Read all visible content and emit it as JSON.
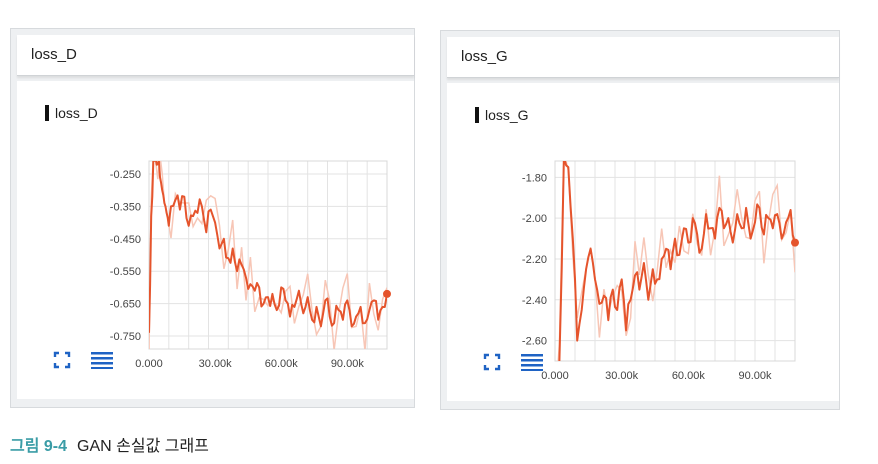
{
  "caption": {
    "figure_label": "그림 9-4",
    "text": "GAN 손실값 그래프"
  },
  "cards": [
    {
      "title": "loss_D",
      "plot_title": "loss_D"
    },
    {
      "title": "loss_G",
      "plot_title": "loss_G"
    }
  ],
  "icons": [
    "fit-to-screen-icon",
    "data-table-icon"
  ],
  "colors": {
    "line": "#e5542c",
    "line_raw": "#f7c6b6",
    "grid": "#e3e3e3"
  },
  "chart_data": [
    {
      "type": "line",
      "title": "loss_D",
      "x_tick_labels": [
        "0.000",
        "30.00k",
        "60.00k",
        "90.00k"
      ],
      "y_tick_labels": [
        "-0.250",
        "-0.350",
        "-0.450",
        "-0.550",
        "-0.650",
        "-0.750"
      ],
      "xlim": [
        0,
        108000
      ],
      "ylim": [
        -0.79,
        -0.21
      ],
      "grid": true,
      "series": [
        {
          "kind": "smoothed",
          "x": [
            0,
            1000,
            2000,
            3000,
            4000,
            5000,
            6000,
            7000,
            8000,
            9000,
            10000,
            12000,
            14000,
            16000,
            18000,
            20000,
            22000,
            24000,
            26000,
            28000,
            30000,
            32000,
            34000,
            36000,
            38000,
            40000,
            42000,
            44000,
            46000,
            48000,
            50000,
            52000,
            54000,
            56000,
            58000,
            60000,
            62000,
            64000,
            66000,
            68000,
            70000,
            72000,
            74000,
            76000,
            78000,
            80000,
            82000,
            84000,
            86000,
            88000,
            90000,
            92000,
            94000,
            96000,
            98000,
            100000,
            102000,
            104000,
            106000,
            108000
          ],
          "y": [
            -0.74,
            -0.38,
            -0.2,
            -0.2,
            -0.22,
            -0.26,
            -0.3,
            -0.34,
            -0.37,
            -0.41,
            -0.35,
            -0.33,
            -0.36,
            -0.32,
            -0.41,
            -0.38,
            -0.37,
            -0.35,
            -0.43,
            -0.36,
            -0.4,
            -0.48,
            -0.45,
            -0.51,
            -0.48,
            -0.55,
            -0.53,
            -0.57,
            -0.59,
            -0.61,
            -0.6,
            -0.65,
            -0.63,
            -0.62,
            -0.67,
            -0.6,
            -0.64,
            -0.69,
            -0.66,
            -0.61,
            -0.68,
            -0.63,
            -0.7,
            -0.66,
            -0.72,
            -0.64,
            -0.69,
            -0.71,
            -0.67,
            -0.7,
            -0.64,
            -0.72,
            -0.69,
            -0.66,
            -0.71,
            -0.67,
            -0.64,
            -0.7,
            -0.66,
            -0.62
          ]
        }
      ]
    },
    {
      "type": "line",
      "title": "loss_G",
      "x_tick_labels": [
        "0.000",
        "30.00k",
        "60.00k",
        "90.00k"
      ],
      "y_tick_labels": [
        "-1.80",
        "-2.00",
        "-2.20",
        "-2.40",
        "-2.60"
      ],
      "xlim": [
        0,
        108000
      ],
      "ylim": [
        -2.7,
        -1.72
      ],
      "grid": true,
      "series": [
        {
          "kind": "smoothed",
          "x": [
            0,
            2000,
            4000,
            6000,
            8000,
            10000,
            12000,
            14000,
            16000,
            18000,
            20000,
            22000,
            24000,
            26000,
            28000,
            30000,
            32000,
            34000,
            36000,
            38000,
            40000,
            42000,
            44000,
            46000,
            48000,
            50000,
            52000,
            54000,
            56000,
            58000,
            60000,
            62000,
            64000,
            66000,
            68000,
            70000,
            72000,
            74000,
            76000,
            78000,
            80000,
            82000,
            84000,
            86000,
            88000,
            90000,
            92000,
            94000,
            96000,
            98000,
            100000,
            102000,
            104000,
            106000,
            108000
          ],
          "y": [
            -2.8,
            -2.7,
            -1.7,
            -1.75,
            -2.1,
            -2.6,
            -2.45,
            -2.25,
            -2.15,
            -2.3,
            -2.42,
            -2.38,
            -2.5,
            -2.35,
            -2.45,
            -2.3,
            -2.55,
            -2.4,
            -2.28,
            -2.35,
            -2.22,
            -2.4,
            -2.25,
            -2.3,
            -2.2,
            -2.15,
            -2.25,
            -2.1,
            -2.18,
            -2.05,
            -2.12,
            -2.0,
            -2.08,
            -2.15,
            -1.98,
            -2.05,
            -2.1,
            -1.95,
            -2.05,
            -2.0,
            -2.12,
            -1.98,
            -2.05,
            -1.95,
            -2.1,
            -2.02,
            -1.95,
            -2.08,
            -2.0,
            -2.05,
            -1.98,
            -2.1,
            -2.02,
            -1.96,
            -2.12
          ]
        }
      ]
    }
  ]
}
